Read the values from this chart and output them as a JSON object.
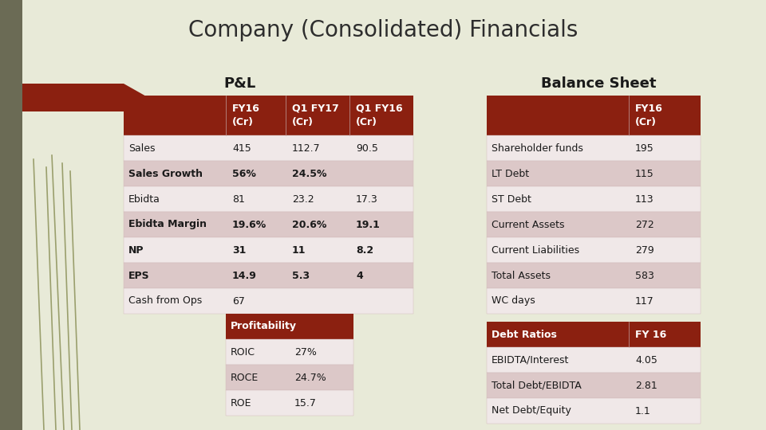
{
  "title": "Company (Consolidated) Financials",
  "bg_color": "#e8ead8",
  "sidebar_color": "#6b6b55",
  "title_color": "#2d2d2d",
  "dark_red": "#8b2010",
  "light_pink1": "#f0e8e8",
  "light_pink2": "#dcc8c8",
  "white": "#ffffff",
  "pl_section_title": "P&L",
  "bs_section_title": "Balance Sheet",
  "pl_rows": [
    [
      "Sales",
      "415",
      "112.7",
      "90.5",
      false
    ],
    [
      "Sales Growth",
      "56%",
      "24.5%",
      "",
      true
    ],
    [
      "Ebidta",
      "81",
      "23.2",
      "17.3",
      false
    ],
    [
      "Ebidta Margin",
      "19.6%",
      "20.6%",
      "19.1",
      true
    ],
    [
      "NP",
      "31",
      "11",
      "8.2",
      true
    ],
    [
      "EPS",
      "14.9",
      "5.3",
      "4",
      true
    ],
    [
      "Cash from Ops",
      "67",
      "",
      "",
      false
    ]
  ],
  "prof_rows": [
    [
      "ROIC",
      "27%"
    ],
    [
      "ROCE",
      "24.7%"
    ],
    [
      "ROE",
      "15.7"
    ]
  ],
  "bs_rows": [
    [
      "Shareholder funds",
      "195"
    ],
    [
      "LT Debt",
      "115"
    ],
    [
      "ST Debt",
      "113"
    ],
    [
      "Current Assets",
      "272"
    ],
    [
      "Current Liabilities",
      "279"
    ],
    [
      "Total Assets",
      "583"
    ],
    [
      "WC days",
      "117"
    ]
  ],
  "debt_header": [
    "Debt Ratios",
    "FY 16"
  ],
  "debt_rows": [
    [
      "EBIDTA/Interest",
      "4.05"
    ],
    [
      "Total Debt/EBIDTA",
      "2.81"
    ],
    [
      "Net Debt/Equity",
      "1.1"
    ]
  ]
}
